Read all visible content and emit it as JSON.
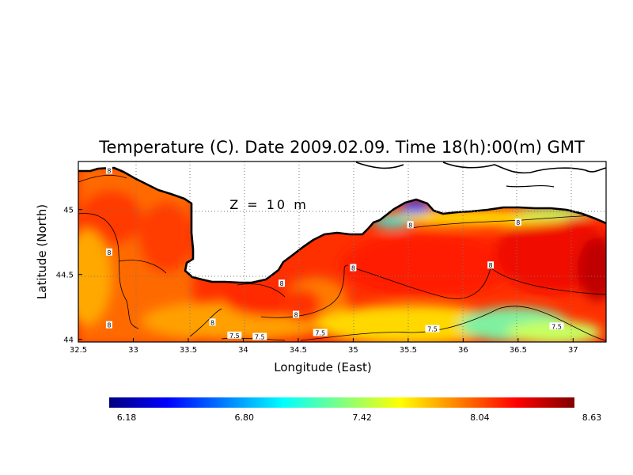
{
  "chart_data": {
    "type": "heatmap",
    "title": "Temperature (C). Date 2009.02.09. Time 18(h):00(m) GMT",
    "xlabel": "Longitude (East)",
    "ylabel": "Latitude (North)",
    "xlim": [
      32.5,
      37.3
    ],
    "ylim": [
      43.98,
      45.37
    ],
    "x_ticks": [
      "32.5",
      "33",
      "33.5",
      "34",
      "34.5",
      "35",
      "35.5",
      "36",
      "36.5",
      "37"
    ],
    "y_ticks": [
      "44",
      "44.5",
      "45"
    ],
    "grid": true,
    "depth_label": "Z = 10 m",
    "colorbar": {
      "min": 6.18,
      "max": 8.63,
      "tick_labels": [
        "6.18",
        "6.80",
        "7.42",
        "8.04",
        "8.63"
      ],
      "colors": [
        "#000080",
        "#0000ff",
        "#0080ff",
        "#00ffff",
        "#80ff80",
        "#ffff00",
        "#ff8000",
        "#ff0000",
        "#800000"
      ]
    },
    "contour_labels": [
      {
        "text": "8",
        "lon": 32.78,
        "lat": 45.3
      },
      {
        "text": "8",
        "lon": 32.78,
        "lat": 44.67
      },
      {
        "text": "8",
        "lon": 32.78,
        "lat": 44.11
      },
      {
        "text": "8",
        "lon": 33.72,
        "lat": 44.13
      },
      {
        "text": "8",
        "lon": 34.35,
        "lat": 44.43
      },
      {
        "text": "8",
        "lon": 34.48,
        "lat": 44.19
      },
      {
        "text": "8",
        "lon": 35.0,
        "lat": 44.55
      },
      {
        "text": "8",
        "lon": 36.25,
        "lat": 44.57
      },
      {
        "text": "8",
        "lon": 35.52,
        "lat": 44.88
      },
      {
        "text": "8",
        "lon": 36.5,
        "lat": 44.9
      },
      {
        "text": "7.5",
        "lon": 33.92,
        "lat": 44.03
      },
      {
        "text": "7.5",
        "lon": 34.15,
        "lat": 44.02
      },
      {
        "text": "7.5",
        "lon": 34.7,
        "lat": 44.05
      },
      {
        "text": "7.5",
        "lon": 35.72,
        "lat": 44.08
      },
      {
        "text": "7.5",
        "lon": 36.85,
        "lat": 44.1
      }
    ]
  }
}
